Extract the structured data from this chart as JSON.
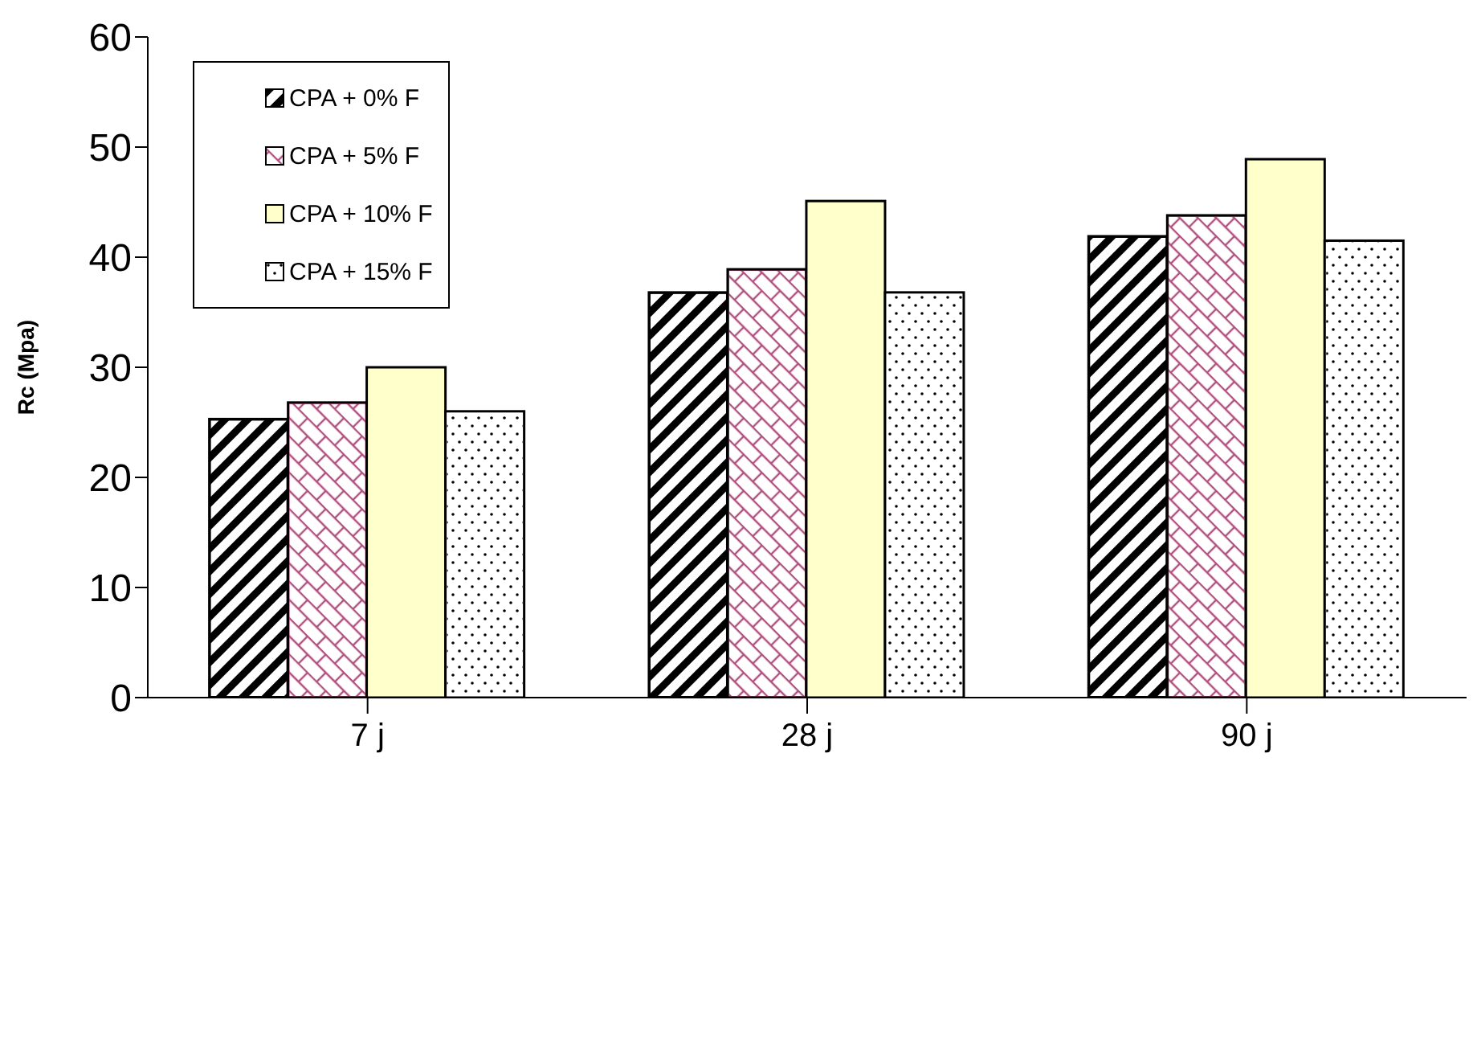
{
  "chart_data": {
    "type": "bar",
    "ylabel": "Rc (Mpa)",
    "categories": [
      "7 j",
      "28 j",
      "90 j"
    ],
    "series": [
      {
        "name": "CPA + 0% F",
        "color": "#000000",
        "values": [
          25.3,
          36.8,
          41.9
        ]
      },
      {
        "name": "CPA + 5% F",
        "color": "#b0507f",
        "values": [
          26.8,
          38.9,
          43.8
        ]
      },
      {
        "name": "CPA + 10% F",
        "color": "#ffffcc",
        "values": [
          30.0,
          45.1,
          48.9
        ]
      },
      {
        "name": "CPA + 15% F",
        "color": "#ffffff",
        "values": [
          26.0,
          36.8,
          41.5
        ]
      }
    ],
    "ylim": [
      0,
      60
    ],
    "yticks": [
      0,
      10,
      20,
      30,
      40,
      50,
      60
    ],
    "grid": false,
    "legend": "top left"
  }
}
